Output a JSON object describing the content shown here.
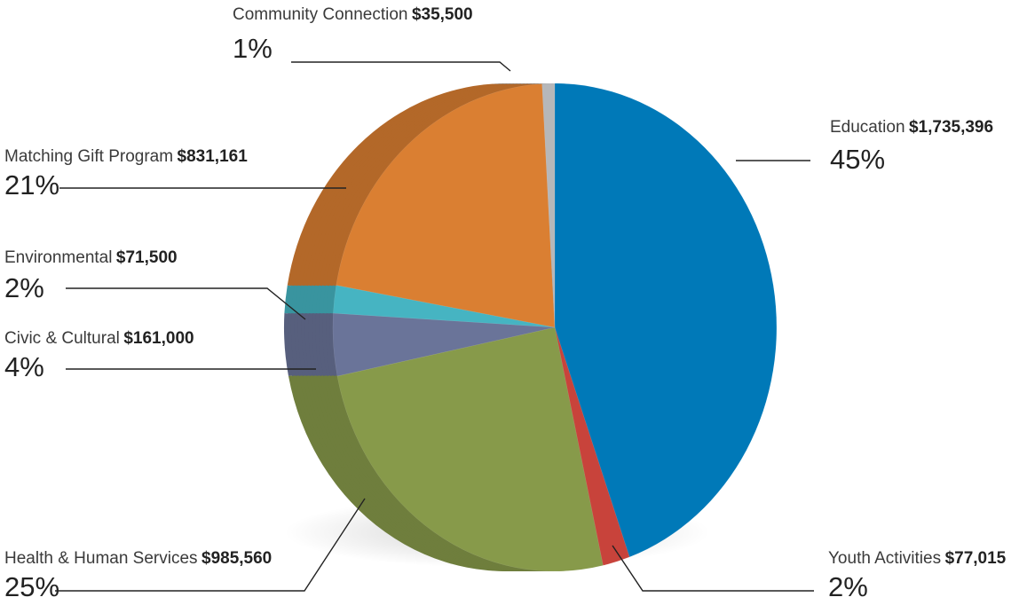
{
  "chart_data": {
    "type": "pie",
    "title": "",
    "slices": [
      {
        "label": "Education",
        "amount": "$1,735,396",
        "percent": "45%",
        "value": 1735396,
        "color": "#0079b8"
      },
      {
        "label": "Youth Activities",
        "amount": "$77,015",
        "percent": "2%",
        "value": 77015,
        "color": "#c8433b"
      },
      {
        "label": "Health & Human Services",
        "amount": "$985,560",
        "percent": "25%",
        "value": 985560,
        "color": "#879a4a"
      },
      {
        "label": "Civic & Cultural",
        "amount": "$161,000",
        "percent": "4%",
        "value": 161000,
        "color": "#6a7499"
      },
      {
        "label": "Environmental",
        "amount": "$71,500",
        "percent": "2%",
        "value": 71500,
        "color": "#46b4c2"
      },
      {
        "label": "Matching Gift Program",
        "amount": "$831,161",
        "percent": "21%",
        "value": 831161,
        "color": "#da7f32"
      },
      {
        "label": "Community Connection",
        "amount": "$35,500",
        "percent": "1%",
        "value": 35500,
        "color": "#b6b7b9"
      }
    ]
  }
}
